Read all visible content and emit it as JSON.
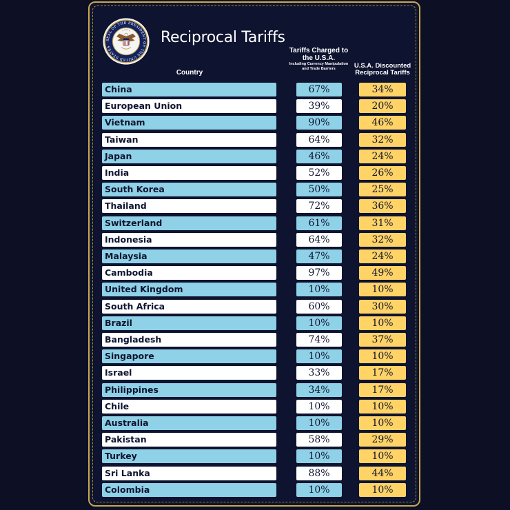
{
  "colors": {
    "background": "#0d1024",
    "panel": "#0e1330",
    "border_gold": "#c9a84c",
    "row_blue": "#8fd1e6",
    "row_white": "#ffffff",
    "tariff_yellow": "#ffd366",
    "cell_text": "#0e1430"
  },
  "icons": {
    "seal": "presidential-seal-icon"
  },
  "chart_data": {
    "type": "table",
    "title": "Reciprocal Tariffs",
    "columns": [
      {
        "key": "country",
        "label": "Country"
      },
      {
        "key": "charged",
        "label": "Tariffs Charged to the U.S.A.",
        "sublabel": "Including Currency Manipulation and Trade Barriers"
      },
      {
        "key": "discounted",
        "label": "U.S.A. Discounted Reciprocal Tariffs"
      }
    ],
    "rows": [
      {
        "country": "China",
        "charged": "67%",
        "discounted": "34%"
      },
      {
        "country": "European Union",
        "charged": "39%",
        "discounted": "20%"
      },
      {
        "country": "Vietnam",
        "charged": "90%",
        "discounted": "46%"
      },
      {
        "country": "Taiwan",
        "charged": "64%",
        "discounted": "32%"
      },
      {
        "country": "Japan",
        "charged": "46%",
        "discounted": "24%"
      },
      {
        "country": "India",
        "charged": "52%",
        "discounted": "26%"
      },
      {
        "country": "South Korea",
        "charged": "50%",
        "discounted": "25%"
      },
      {
        "country": "Thailand",
        "charged": "72%",
        "discounted": "36%"
      },
      {
        "country": "Switzerland",
        "charged": "61%",
        "discounted": "31%"
      },
      {
        "country": "Indonesia",
        "charged": "64%",
        "discounted": "32%"
      },
      {
        "country": "Malaysia",
        "charged": "47%",
        "discounted": "24%"
      },
      {
        "country": "Cambodia",
        "charged": "97%",
        "discounted": "49%"
      },
      {
        "country": "United Kingdom",
        "charged": "10%",
        "discounted": "10%"
      },
      {
        "country": "South Africa",
        "charged": "60%",
        "discounted": "30%"
      },
      {
        "country": "Brazil",
        "charged": "10%",
        "discounted": "10%"
      },
      {
        "country": "Bangladesh",
        "charged": "74%",
        "discounted": "37%"
      },
      {
        "country": "Singapore",
        "charged": "10%",
        "discounted": "10%"
      },
      {
        "country": "Israel",
        "charged": "33%",
        "discounted": "17%"
      },
      {
        "country": "Philippines",
        "charged": "34%",
        "discounted": "17%"
      },
      {
        "country": "Chile",
        "charged": "10%",
        "discounted": "10%"
      },
      {
        "country": "Australia",
        "charged": "10%",
        "discounted": "10%"
      },
      {
        "country": "Pakistan",
        "charged": "58%",
        "discounted": "29%"
      },
      {
        "country": "Turkey",
        "charged": "10%",
        "discounted": "10%"
      },
      {
        "country": "Sri Lanka",
        "charged": "88%",
        "discounted": "44%"
      },
      {
        "country": "Colombia",
        "charged": "10%",
        "discounted": "10%"
      }
    ]
  },
  "seal": {
    "ring_text": "SEAL OF THE PRESIDENT OF THE UNITED STATES"
  }
}
